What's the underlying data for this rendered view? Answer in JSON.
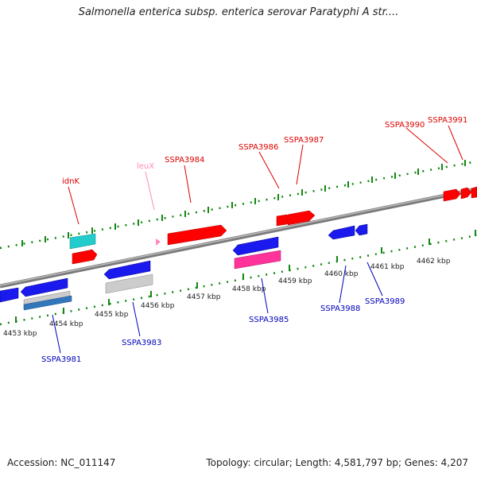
{
  "title": "Salmonella enterica subsp. enterica serovar Paratyphi A str....",
  "footer": {
    "accession": "Accession: NC_011147",
    "summary": "Topology: circular; Length: 4,581,797 bp; Genes: 4,207"
  },
  "colors": {
    "forward_label": "#dd0000",
    "reverse_label": "#0000bb",
    "pink_label": "#ff88bb",
    "red_gene": "#ff0000",
    "blue_gene": "#1a1aee",
    "cyan_gene": "#22cccc",
    "gray_gene": "#cccccc",
    "magenta_gene": "#ff3399",
    "steel_gene": "#3377bb",
    "backbone": "#888888",
    "tick_green": "#118811"
  },
  "ticks": [
    {
      "label": "4453 kbp"
    },
    {
      "label": "4454 kbp"
    },
    {
      "label": "4455 kbp"
    },
    {
      "label": "4456 kbp"
    },
    {
      "label": "4457 kbp"
    },
    {
      "label": "4458 kbp"
    },
    {
      "label": "4459 kbp"
    },
    {
      "label": "4460 kbp"
    },
    {
      "label": "4461 kbp"
    },
    {
      "label": "4462 kbp"
    }
  ],
  "gene_labels": {
    "idnK": "idnK",
    "leuX": "leuX",
    "SSPA3984": "SSPA3984",
    "SSPA3986": "SSPA3986",
    "SSPA3987": "SSPA3987",
    "SSPA3990": "SSPA3990",
    "SSPA3991": "SSPA3991",
    "SSPA3981": "SSPA3981",
    "SSPA3983": "SSPA3983",
    "SSPA3985": "SSPA3985",
    "SSPA3988": "SSPA3988",
    "SSPA3989": "SSPA3989"
  }
}
